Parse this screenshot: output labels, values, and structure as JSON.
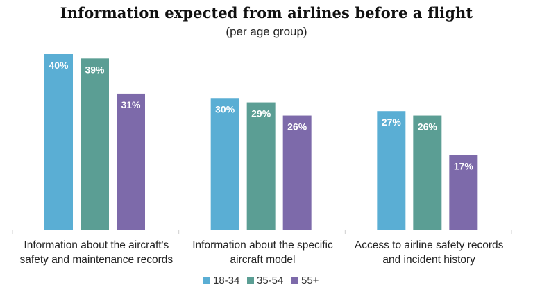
{
  "chart_data": {
    "type": "bar",
    "title": "Information expected from airlines before a flight",
    "subtitle": "(per age group)",
    "categories": [
      [
        "Information about the aircraft's",
        "safety and maintenance records"
      ],
      [
        "Information about the specific",
        "aircraft model"
      ],
      [
        "Access to airline safety records",
        "and incident history"
      ]
    ],
    "series": [
      {
        "name": "18-34",
        "color": "#5aaed4",
        "values": [
          40,
          30,
          27
        ],
        "labels": [
          "40%",
          "30%",
          "27%"
        ]
      },
      {
        "name": "35-54",
        "color": "#5b9e94",
        "values": [
          39,
          29,
          26
        ],
        "labels": [
          "39%",
          "29%",
          "26%"
        ]
      },
      {
        "name": "55+",
        "color": "#7d6aaa",
        "values": [
          31,
          26,
          17
        ],
        "labels": [
          "31%",
          "26%",
          "17%"
        ]
      }
    ],
    "ylim": [
      0,
      40
    ],
    "grid": false,
    "legend_position": "bottom"
  }
}
